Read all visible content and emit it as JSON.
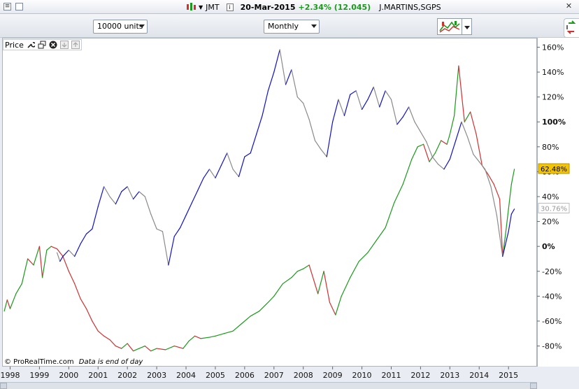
{
  "window": {
    "symbol": "JMT",
    "date": "20-Mar-2015",
    "change": "+2.34% (12.045)",
    "company": "J.MARTINS,SGPS"
  },
  "toolbar": {
    "units": "10000 units",
    "period": "Monthly"
  },
  "panel": {
    "label": "Price"
  },
  "footer": {
    "copyright": "© ProRealTime.com",
    "note": "Data is end of day"
  },
  "colors": {
    "up": "#1a9a1a",
    "down": "#d03030",
    "blue_series": "#1010cc",
    "gray_series": "#8a8a8a",
    "last_badge": "#f5c400"
  },
  "chart_data": {
    "type": "line",
    "x_axis": {
      "tick_labels": [
        "1998",
        "1999",
        "2000",
        "2001",
        "2002",
        "2003",
        "2004",
        "2005",
        "2006",
        "2007",
        "2008",
        "2009",
        "2010",
        "2011",
        "2012",
        "2013",
        "2014",
        "2015"
      ],
      "range": [
        1997.75,
        2015.95
      ]
    },
    "y_axis": {
      "unit": "%",
      "ticks": [
        -80,
        -60,
        -40,
        -20,
        0,
        20,
        40,
        60,
        80,
        100,
        120,
        140,
        160
      ],
      "tick_labels": [
        "-80%",
        "-60%",
        "-40%",
        "-20%",
        "0%",
        "20%",
        "40%",
        "60%",
        "80%",
        "100%",
        "120%",
        "140%",
        "160%"
      ],
      "bold_ticks": [
        0,
        100
      ],
      "range": [
        -96,
        167
      ],
      "side": "right"
    },
    "grid": false,
    "last_values": [
      {
        "label": "62.48%",
        "value": 62.48,
        "style": "highlight"
      },
      {
        "label": "30.76%",
        "value": 30.76,
        "style": "plain"
      }
    ],
    "series": [
      {
        "color_mode": "up-down",
        "x": [
          1997.8,
          1997.9,
          1998.0,
          1998.2,
          1998.4,
          1998.6,
          1998.8,
          1999.0,
          1999.1,
          1999.25,
          1999.4,
          1999.6,
          1999.8,
          2000.0,
          2000.2,
          2000.4,
          2000.6,
          2000.8,
          2001.0,
          2001.2,
          2001.4,
          2001.6,
          2001.8,
          2002.0,
          2002.2,
          2002.4,
          2002.6,
          2002.8,
          2003.0,
          2003.3,
          2003.6,
          2003.9,
          2004.1,
          2004.3,
          2004.5,
          2004.8,
          2005.0,
          2005.3,
          2005.6,
          2005.9,
          2006.2,
          2006.5,
          2006.8,
          2007.0,
          2007.3,
          2007.6,
          2007.8,
          2008.0,
          2008.2,
          2008.5,
          2008.7,
          2008.9,
          2009.1,
          2009.3,
          2009.6,
          2009.9,
          2010.2,
          2010.5,
          2010.8,
          2011.1,
          2011.4,
          2011.7,
          2011.9,
          2012.1,
          2012.3,
          2012.5,
          2012.7,
          2012.9,
          2013.0,
          2013.15,
          2013.3,
          2013.5,
          2013.7,
          2013.9,
          2014.1,
          2014.3,
          2014.5,
          2014.7,
          2014.8,
          2014.9,
          2015.0,
          2015.1,
          2015.2
        ],
        "y": [
          -52,
          -43,
          -50,
          -38,
          -30,
          -10,
          -15,
          0,
          -25,
          -3,
          0,
          -2,
          -8,
          -20,
          -30,
          -42,
          -50,
          -60,
          -68,
          -72,
          -75,
          -80,
          -82,
          -78,
          -84,
          -82,
          -80,
          -84,
          -82,
          -83,
          -80,
          -82,
          -76,
          -72,
          -74,
          -73,
          -72,
          -70,
          -68,
          -62,
          -56,
          -52,
          -45,
          -40,
          -30,
          -25,
          -20,
          -18,
          -15,
          -38,
          -20,
          -45,
          -55,
          -40,
          -25,
          -12,
          -5,
          5,
          15,
          35,
          50,
          70,
          80,
          82,
          68,
          75,
          85,
          82,
          90,
          105,
          145,
          100,
          108,
          90,
          65,
          58,
          50,
          38,
          -8,
          10,
          30,
          50,
          62
        ]
      },
      {
        "color_mode": "blue-gray",
        "x": [
          1999.6,
          1999.7,
          1999.8,
          2000.0,
          2000.2,
          2000.4,
          2000.6,
          2000.8,
          2001.0,
          2001.2,
          2001.4,
          2001.6,
          2001.8,
          2002.0,
          2002.2,
          2002.4,
          2002.6,
          2002.8,
          2003.0,
          2003.2,
          2003.4,
          2003.6,
          2003.8,
          2004.0,
          2004.2,
          2004.4,
          2004.6,
          2004.8,
          2005.0,
          2005.2,
          2005.4,
          2005.6,
          2005.8,
          2006.0,
          2006.2,
          2006.4,
          2006.6,
          2006.8,
          2007.0,
          2007.2,
          2007.4,
          2007.6,
          2007.8,
          2008.0,
          2008.2,
          2008.4,
          2008.6,
          2008.8,
          2009.0,
          2009.2,
          2009.4,
          2009.6,
          2009.8,
          2010.0,
          2010.2,
          2010.4,
          2010.6,
          2010.8,
          2011.0,
          2011.2,
          2011.4,
          2011.6,
          2011.8,
          2012.0,
          2012.2,
          2012.4,
          2012.6,
          2012.8,
          2013.0,
          2013.2,
          2013.4,
          2013.6,
          2013.8,
          2014.0,
          2014.2,
          2014.4,
          2014.6,
          2014.8,
          2015.0,
          2015.1,
          2015.2
        ],
        "y": [
          -5,
          -12,
          -8,
          -3,
          -8,
          2,
          10,
          14,
          32,
          48,
          40,
          34,
          44,
          48,
          38,
          44,
          40,
          26,
          14,
          12,
          -15,
          8,
          15,
          25,
          35,
          45,
          55,
          62,
          55,
          65,
          75,
          62,
          56,
          72,
          75,
          90,
          105,
          125,
          140,
          158,
          130,
          142,
          120,
          115,
          102,
          85,
          78,
          72,
          100,
          118,
          105,
          122,
          125,
          110,
          118,
          128,
          112,
          125,
          118,
          98,
          104,
          112,
          100,
          92,
          84,
          72,
          66,
          62,
          70,
          85,
          100,
          88,
          74,
          68,
          62,
          48,
          25,
          -8,
          12,
          26,
          30
        ]
      }
    ]
  }
}
